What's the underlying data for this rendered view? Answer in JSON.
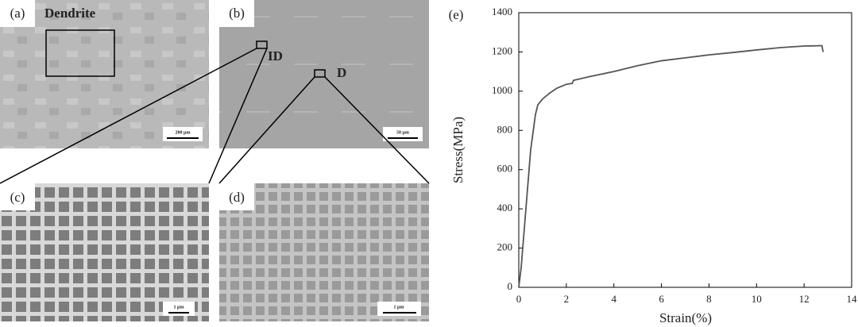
{
  "figure": {
    "panels": [
      {
        "label": "(a)",
        "annotations": [
          "Dendrite"
        ],
        "scale_bar": "200 μm"
      },
      {
        "label": "(b)",
        "annotations": [
          "ID",
          "D"
        ],
        "scale_bar": "50 μm"
      },
      {
        "label": "(c)",
        "scale_bar": "1 μm"
      },
      {
        "label": "(d)",
        "scale_bar": "1 μm"
      }
    ]
  },
  "chart_data": {
    "type": "line",
    "label": "(e)",
    "xlabel": "Strain(%)",
    "ylabel": "Stress(MPa)",
    "x": [
      0,
      0.1,
      0.3,
      0.5,
      0.7,
      0.8,
      1.0,
      1.3,
      1.6,
      2.0,
      2.25,
      2.3,
      3,
      4,
      5,
      6,
      7,
      8,
      9,
      10,
      11,
      12,
      12.75,
      12.8
    ],
    "series": [
      {
        "color": "#555555",
        "values": [
          0,
          100,
          400,
          700,
          880,
          930,
          960,
          990,
          1015,
          1035,
          1040,
          1055,
          1075,
          1100,
          1130,
          1155,
          1170,
          1185,
          1197,
          1210,
          1222,
          1230,
          1232,
          1200
        ]
      }
    ],
    "xlim": [
      0,
      14
    ],
    "ylim": [
      0,
      1400
    ],
    "xticks": [
      0,
      2,
      4,
      6,
      8,
      10,
      12,
      14
    ],
    "yticks": [
      0,
      200,
      400,
      600,
      800,
      1000,
      1200,
      1400
    ]
  }
}
